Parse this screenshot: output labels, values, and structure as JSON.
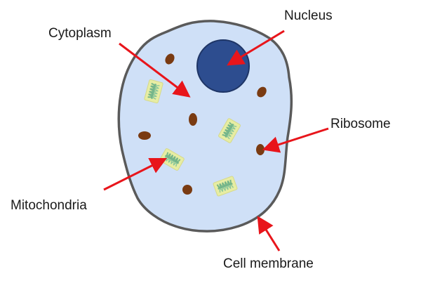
{
  "labels": {
    "nucleus": "Nucleus",
    "cytoplasm": "Cytoplasm",
    "ribosome": "Ribosome",
    "mitochondria": "Mitochondria",
    "cell_membrane": "Cell membrane"
  },
  "colors": {
    "cytoplasm_fill": "#cfe0f7",
    "membrane_stroke": "#5a5a5a",
    "nucleus_fill": "#2d4d8f",
    "nucleus_stroke": "#1e3566",
    "ribosome_fill": "#7a3b12",
    "mitochondria_fill": "#e7eda3",
    "mitochondria_cristae": "#74b58a",
    "arrow": "#e8151b"
  }
}
